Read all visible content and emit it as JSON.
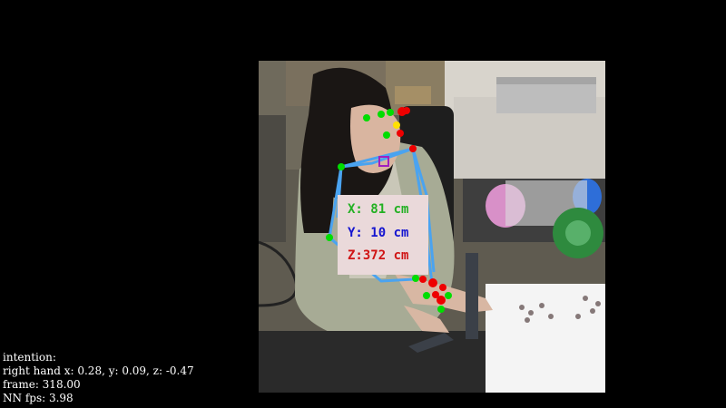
{
  "window": {
    "background": "#000000"
  },
  "coordinates": {
    "x": {
      "label": "X: 81 cm",
      "color": "#22b022"
    },
    "y": {
      "label": "Y: 10 cm",
      "color": "#1414d0"
    },
    "z": {
      "label": "Z:372 cm",
      "color": "#d01414"
    }
  },
  "hud": {
    "intention": "intention:",
    "right_hand": "right hand x: 0.28, y: 0.09, z: -0.47",
    "frame": "frame: 318.00",
    "nn_fps": "NN fps: 3.98"
  },
  "overlay": {
    "skeleton_color": "#4aa3f0",
    "joint_left_color": "#00dd00",
    "joint_right_color": "#ee0000",
    "nose_color": "#ffe000",
    "anchor_color": "#a020c0"
  }
}
